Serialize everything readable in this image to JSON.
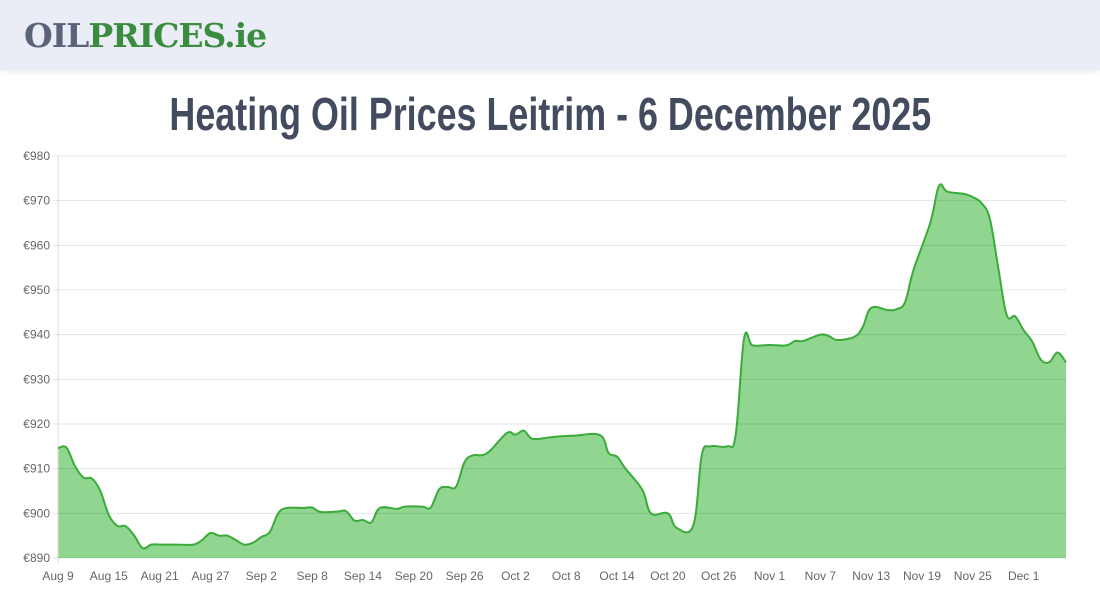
{
  "header": {
    "logo_part1": "OIL",
    "logo_part2": "PRICES.ie"
  },
  "page_title": "Heating Oil Prices Leitrim - 6 December 2025",
  "chart_data": {
    "type": "area",
    "title": "",
    "xlabel": "",
    "ylabel": "",
    "ylim": [
      890,
      980
    ],
    "yticks": [
      890,
      900,
      910,
      920,
      930,
      940,
      950,
      960,
      970,
      980
    ],
    "ytick_prefix": "€",
    "xtick_labels": [
      "Aug 9",
      "Aug 15",
      "Aug 21",
      "Aug 27",
      "Sep 2",
      "Sep 8",
      "Sep 14",
      "Sep 20",
      "Sep 26",
      "Oct 2",
      "Oct 8",
      "Oct 14",
      "Oct 20",
      "Oct 26",
      "Nov 1",
      "Nov 7",
      "Nov 13",
      "Nov 19",
      "Nov 25",
      "Dec 1"
    ],
    "xlim": [
      "2025-08-09",
      "2025-12-06"
    ],
    "grid": true,
    "colors": {
      "line": "#3aab3a",
      "fill": "#90d690"
    },
    "series": [
      {
        "x": [
          "2025-08-09",
          "2025-08-10",
          "2025-08-11",
          "2025-08-12",
          "2025-08-13",
          "2025-08-14",
          "2025-08-15",
          "2025-08-16",
          "2025-08-17",
          "2025-08-18",
          "2025-08-19",
          "2025-08-20",
          "2025-08-21",
          "2025-08-23",
          "2025-08-25",
          "2025-08-26",
          "2025-08-27",
          "2025-08-28",
          "2025-08-29",
          "2025-08-30",
          "2025-08-31",
          "2025-09-01",
          "2025-09-02",
          "2025-09-03",
          "2025-09-04",
          "2025-09-05",
          "2025-09-07",
          "2025-09-08",
          "2025-09-09",
          "2025-09-11",
          "2025-09-12",
          "2025-09-13",
          "2025-09-14",
          "2025-09-15",
          "2025-09-16",
          "2025-09-18",
          "2025-09-19",
          "2025-09-21",
          "2025-09-22",
          "2025-09-23",
          "2025-09-24",
          "2025-09-25",
          "2025-09-26",
          "2025-09-27",
          "2025-09-28",
          "2025-09-29",
          "2025-10-01",
          "2025-10-02",
          "2025-10-03",
          "2025-10-04",
          "2025-10-06",
          "2025-10-07",
          "2025-10-09",
          "2025-10-12",
          "2025-10-13",
          "2025-10-14",
          "2025-10-15",
          "2025-10-17",
          "2025-10-18",
          "2025-10-20",
          "2025-10-21",
          "2025-10-23",
          "2025-10-24",
          "2025-10-25",
          "2025-10-27",
          "2025-10-28",
          "2025-10-29",
          "2025-10-30",
          "2025-11-01",
          "2025-11-03",
          "2025-11-04",
          "2025-11-05",
          "2025-11-07",
          "2025-11-08",
          "2025-11-09",
          "2025-11-11",
          "2025-11-12",
          "2025-11-13",
          "2025-11-15",
          "2025-11-16",
          "2025-11-17",
          "2025-11-18",
          "2025-11-20",
          "2025-11-21",
          "2025-11-22",
          "2025-11-24",
          "2025-11-25",
          "2025-11-26",
          "2025-11-27",
          "2025-11-28",
          "2025-11-29",
          "2025-11-30",
          "2025-12-01",
          "2025-12-02",
          "2025-12-03",
          "2025-12-04",
          "2025-12-05",
          "2025-12-06"
        ],
        "values": [
          914.6,
          914.7,
          910.6,
          908,
          907.8,
          905,
          899.6,
          897.2,
          897.1,
          895,
          892.2,
          893,
          893,
          893,
          893,
          894,
          895.6,
          895,
          895,
          894,
          893,
          893.4,
          894.7,
          895.8,
          900,
          901.2,
          901.2,
          901.3,
          900.3,
          900.4,
          900.5,
          898.4,
          898.5,
          898,
          901.2,
          901,
          901.5,
          901.5,
          901.3,
          905.4,
          905.9,
          906,
          911.5,
          913,
          913,
          914,
          918,
          917.6,
          918.5,
          916.7,
          917,
          917.2,
          917.4,
          917.5,
          913.5,
          912.7,
          910,
          905.2,
          900,
          900,
          896.8,
          897.3,
          913,
          915,
          915,
          917.5,
          939.2,
          937.6,
          937.7,
          937.6,
          938.6,
          938.6,
          940,
          939.7,
          938.8,
          939.5,
          941.7,
          946,
          945.5,
          945.7,
          947.3,
          954.5,
          965.2,
          973.3,
          972,
          971.5,
          970.8,
          969.5,
          966,
          955,
          944.4,
          944.1,
          941,
          938.5,
          934.5,
          933.8,
          936,
          933.8
        ]
      }
    ]
  }
}
